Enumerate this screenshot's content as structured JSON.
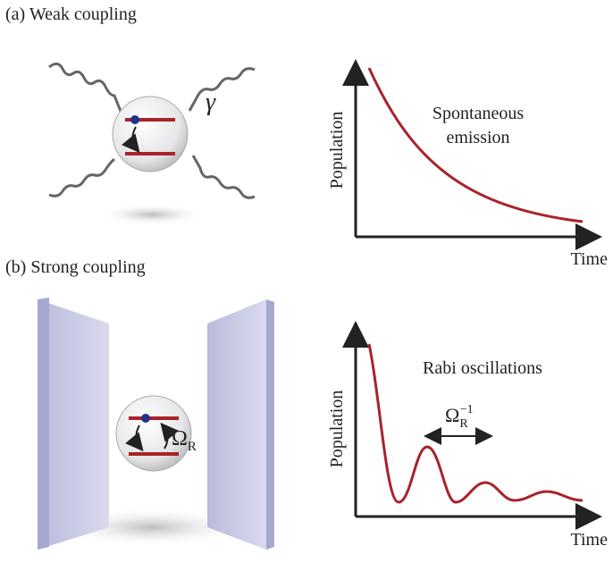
{
  "panels": [
    {
      "label": "(a) Weak coupling",
      "decay_symbol": "γ",
      "plot": {
        "y_label": "Population",
        "x_label": "Time",
        "annotation": [
          "Spontaneous",
          "emission"
        ]
      }
    },
    {
      "label": "(b) Strong coupling",
      "rabi_symbol": "Ω",
      "rabi_subscript": "R",
      "plot": {
        "y_label": "Population",
        "x_label": "Time",
        "annotation": [
          "Rabi oscillations"
        ],
        "period_symbol": "Ω",
        "period_subscript": "R",
        "period_superscript": "−1"
      }
    }
  ]
}
